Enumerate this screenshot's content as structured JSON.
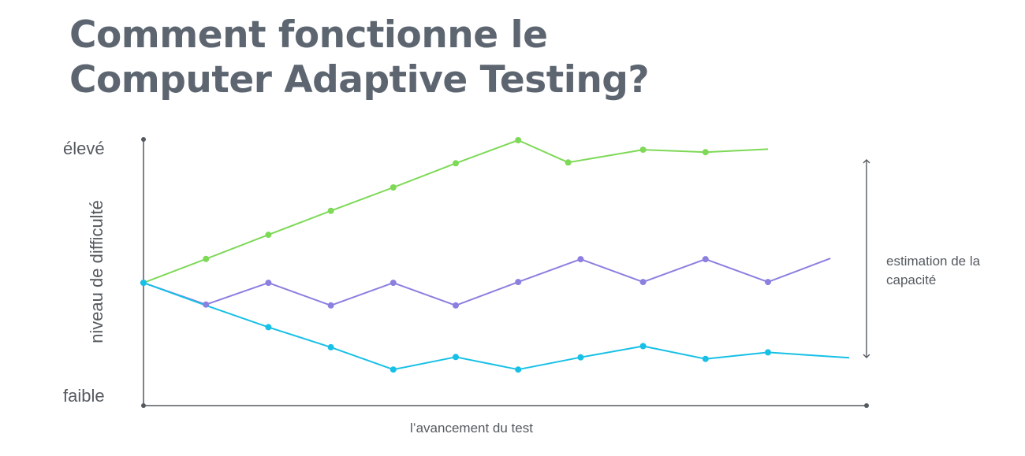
{
  "title_lines": [
    "Comment fonctionne le",
    "Computer Adaptive Testing?"
  ],
  "chart_data": {
    "type": "line",
    "title": "Comment fonctionne le Computer Adaptive Testing?",
    "xlabel": "l’avancement du test",
    "ylabel": "niveau de difficulté",
    "y_high_label": "élevé",
    "y_low_label": "faible",
    "annotation": "estimation de la capacité",
    "annotation_lines": [
      "estimation de la",
      "capacité"
    ],
    "xlim": [
      0,
      11.8
    ],
    "ylim": [
      0,
      100
    ],
    "grid": false,
    "series": [
      {
        "color": "#7ed957",
        "x": [
          0,
          1,
          2,
          3,
          4,
          5,
          6,
          6.8,
          8,
          9,
          10
        ],
        "values": [
          47.5,
          56.3,
          65.2,
          74.0,
          82.6,
          91.5,
          100.0,
          91.8,
          96.5,
          95.6,
          96.7
        ],
        "markers": [
          true,
          true,
          true,
          true,
          true,
          true,
          true,
          true,
          true,
          true,
          false
        ]
      },
      {
        "color": "#8b7fe0",
        "x": [
          0,
          1,
          2,
          3,
          4,
          5,
          6,
          7,
          8,
          9,
          10,
          11
        ],
        "values": [
          47.5,
          39.5,
          47.5,
          39.2,
          47.5,
          39.2,
          47.8,
          56.2,
          47.8,
          56.2,
          47.8,
          56.5
        ],
        "markers": [
          true,
          true,
          true,
          true,
          true,
          true,
          true,
          true,
          true,
          true,
          true,
          false
        ]
      },
      {
        "color": "#17c0e6",
        "x": [
          0,
          1,
          2,
          3,
          4,
          5,
          6,
          7,
          8,
          9,
          10,
          11.3
        ],
        "values": [
          47.5,
          39.2,
          31.2,
          23.8,
          15.6,
          20.2,
          15.6,
          20.1,
          24.2,
          19.5,
          21.9,
          19.9
        ],
        "markers": [
          true,
          false,
          true,
          true,
          true,
          true,
          true,
          true,
          true,
          true,
          true,
          false
        ]
      }
    ]
  },
  "colors": {
    "axis": "#555a60",
    "title": "#5d6670",
    "text": "#555a60"
  }
}
